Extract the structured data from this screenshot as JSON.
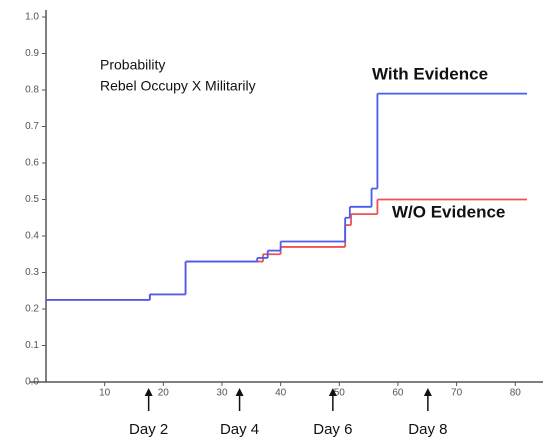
{
  "chart_data": {
    "type": "step",
    "xlim": [
      0,
      82
    ],
    "ylim": [
      0,
      1
    ],
    "xticks": [
      10,
      20,
      30,
      40,
      50,
      60,
      70,
      80
    ],
    "yticks": [
      {
        "value": 0,
        "label": "0.0"
      },
      0.1,
      0.2,
      0.3,
      0.4,
      0.5,
      0.6,
      0.7,
      0.8,
      0.9,
      {
        "value": 1,
        "label": "1.0"
      }
    ],
    "title_lines": [
      "Probability",
      "Rebel Occupy X Militarily"
    ],
    "series": [
      {
        "name": "With Evidence",
        "color": "#4a5cf0",
        "x": [
          0,
          17.7,
          23.8,
          36,
          37.8,
          40,
          51,
          51.8,
          55.5,
          56.5,
          82
        ],
        "values": [
          0.225,
          0.24,
          0.33,
          0.34,
          0.36,
          0.385,
          0.45,
          0.48,
          0.53,
          0.79,
          0.79
        ]
      },
      {
        "name": "W/O Evidence",
        "color": "#f05050",
        "x": [
          0,
          17.7,
          23.8,
          37,
          40,
          51,
          52,
          56.5,
          82
        ],
        "values": [
          0.225,
          0.24,
          0.33,
          0.35,
          0.37,
          0.43,
          0.46,
          0.5,
          0.5
        ]
      }
    ],
    "day_markers": [
      {
        "x": 17.5,
        "label": "Day 2"
      },
      {
        "x": 33,
        "label": "Day 4"
      },
      {
        "x": 48.9,
        "label": "Day 6"
      },
      {
        "x": 65.1,
        "label": "Day 8"
      }
    ]
  }
}
